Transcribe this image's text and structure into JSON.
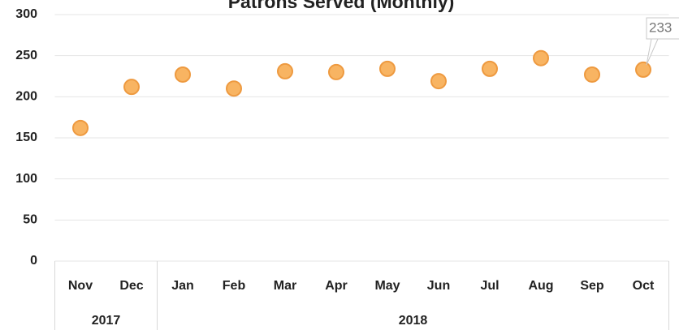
{
  "chart_data": {
    "type": "scatter",
    "title": "Patrons Served (Monthly)",
    "categories": [
      "Nov",
      "Dec",
      "Jan",
      "Feb",
      "Mar",
      "Apr",
      "May",
      "Jun",
      "Jul",
      "Aug",
      "Sep",
      "Oct"
    ],
    "groups": [
      {
        "label": "2017",
        "count": 2
      },
      {
        "label": "2018",
        "count": 10
      }
    ],
    "values": [
      162,
      212,
      227,
      210,
      231,
      230,
      234,
      219,
      234,
      247,
      227,
      233
    ],
    "value_labels": [
      null,
      null,
      null,
      null,
      null,
      null,
      null,
      null,
      null,
      null,
      null,
      "233"
    ],
    "color": "#f8b462",
    "edge_color": "#ee9a40",
    "ylim": [
      0,
      300
    ],
    "yticks": [
      0,
      50,
      100,
      150,
      200,
      250,
      300
    ],
    "grid": true
  }
}
